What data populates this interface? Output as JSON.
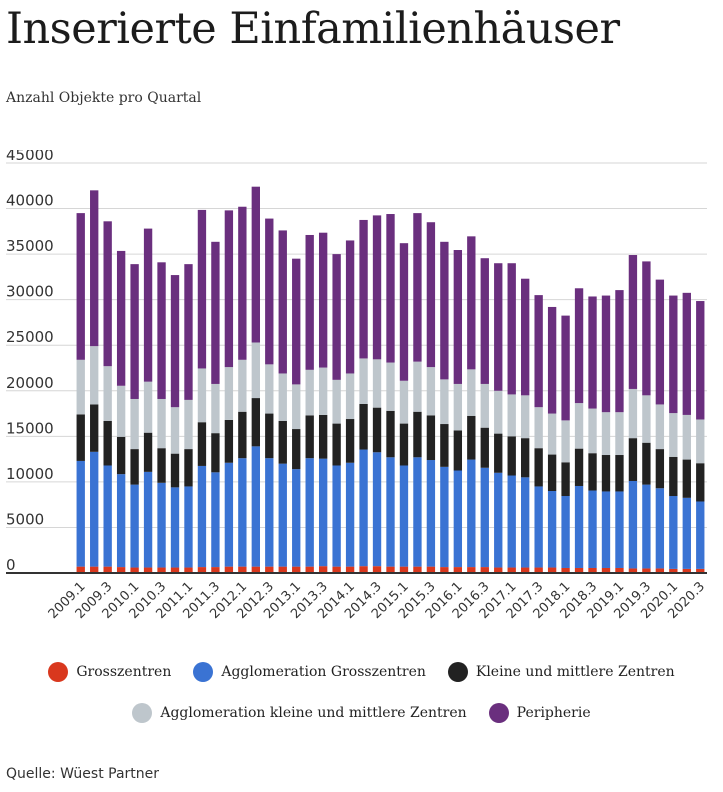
{
  "title": "Inserierte Einfamilienhäuser",
  "subtitle": "Anzahl Objekte pro Quartal",
  "source": "Quelle: Wüest Partner",
  "chart_data": {
    "type": "bar",
    "stacked": true,
    "ylim": [
      0,
      45000
    ],
    "yticks": [
      0,
      5000,
      10000,
      15000,
      20000,
      25000,
      30000,
      35000,
      40000,
      45000
    ],
    "grid": true,
    "legend_position": "bottom",
    "categories": [
      "2009.1",
      "2009.2",
      "2009.3",
      "2009.4",
      "2010.1",
      "2010.2",
      "2010.3",
      "2010.4",
      "2011.1",
      "2011.2",
      "2011.3",
      "2011.4",
      "2012.1",
      "2012.2",
      "2012.3",
      "2012.4",
      "2013.1",
      "2013.2",
      "2013.3",
      "2013.4",
      "2014.1",
      "2014.2",
      "2014.3",
      "2014.4",
      "2015.1",
      "2015.2",
      "2015.3",
      "2015.4",
      "2016.1",
      "2016.2",
      "2016.3",
      "2016.4",
      "2017.1",
      "2017.2",
      "2017.3",
      "2017.4",
      "2018.1",
      "2018.2",
      "2018.3",
      "2018.4",
      "2019.1",
      "2019.2",
      "2019.3",
      "2019.4",
      "2020.1",
      "2020.2",
      "2020.3"
    ],
    "tick_labels": [
      "2009.1",
      "2009.3",
      "2010.1",
      "2010.3",
      "2011.1",
      "2011.3",
      "2012.1",
      "2012.3",
      "2013.1",
      "2013.3",
      "2014.1",
      "2014.3",
      "2015.1",
      "2015.3",
      "2016.1",
      "2016.3",
      "2017.1",
      "2017.3",
      "2018.1",
      "2018.3",
      "2019.1",
      "2019.3",
      "2020.1",
      "2020.3"
    ],
    "series": [
      {
        "name": "Grosszentren",
        "color": "#d9381e",
        "values": [
          700,
          700,
          700,
          650,
          600,
          600,
          600,
          600,
          600,
          650,
          650,
          700,
          700,
          700,
          700,
          700,
          700,
          700,
          750,
          700,
          700,
          750,
          750,
          700,
          700,
          700,
          700,
          650,
          650,
          650,
          650,
          600,
          600,
          600,
          600,
          600,
          550,
          550,
          550,
          550,
          550,
          500,
          500,
          500,
          450,
          450,
          450
        ]
      },
      {
        "name": "Agglomeration Grosszentren",
        "color": "#3a73d3",
        "values": [
          11600,
          12600,
          11100,
          10200,
          9100,
          10500,
          9300,
          8800,
          8900,
          11100,
          10400,
          11400,
          11900,
          13200,
          11900,
          11300,
          10700,
          11900,
          11800,
          11100,
          11400,
          12800,
          12500,
          12000,
          11100,
          12000,
          11700,
          11000,
          10600,
          11800,
          10900,
          10400,
          10100,
          9900,
          8900,
          8400,
          7900,
          9000,
          8500,
          8400,
          8400,
          9600,
          9200,
          8800,
          8000,
          7800,
          7400
        ]
      },
      {
        "name": "Kleine und mittlere Zentren",
        "color": "#222222",
        "values": [
          5100,
          5200,
          4900,
          4100,
          3900,
          4300,
          3800,
          3700,
          4100,
          4800,
          4300,
          4700,
          5100,
          5300,
          4900,
          4700,
          4400,
          4700,
          4800,
          4600,
          4800,
          5000,
          4900,
          5100,
          4600,
          5000,
          4900,
          4700,
          4400,
          4800,
          4400,
          4300,
          4300,
          4300,
          4200,
          4000,
          3700,
          4100,
          4100,
          4000,
          4000,
          4700,
          4600,
          4300,
          4300,
          4200,
          4200
        ]
      },
      {
        "name": "Agglomeration kleine und mittlere Zentren",
        "color": "#bec6cc",
        "values": [
          6000,
          6400,
          6000,
          5600,
          5500,
          5600,
          5400,
          5100,
          5400,
          5900,
          5400,
          5800,
          5700,
          6100,
          5400,
          5200,
          4900,
          5000,
          5200,
          4800,
          5000,
          5000,
          5300,
          5300,
          4700,
          5500,
          5300,
          4900,
          5100,
          5100,
          4800,
          4700,
          4600,
          4700,
          4500,
          4500,
          4600,
          5000,
          4900,
          4700,
          4700,
          5400,
          5200,
          4900,
          4800,
          4900,
          4800
        ]
      },
      {
        "name": "Peripherie",
        "color": "#6a2f7e",
        "values": [
          16100,
          17100,
          15900,
          14800,
          14800,
          16800,
          15000,
          14500,
          14900,
          17400,
          15600,
          17200,
          16800,
          17100,
          16000,
          15700,
          13800,
          14800,
          14800,
          13800,
          14600,
          15200,
          15800,
          16300,
          15100,
          16300,
          15900,
          15100,
          14700,
          14600,
          13800,
          14000,
          14400,
          12800,
          12300,
          11700,
          11500,
          12600,
          12300,
          12800,
          13400,
          14700,
          14700,
          13700,
          12900,
          13400,
          13000
        ]
      }
    ]
  }
}
